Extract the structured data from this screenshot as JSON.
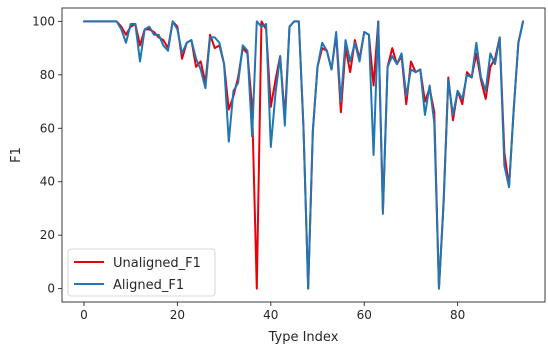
{
  "chart_data": {
    "type": "line",
    "xlabel": "Type Index",
    "ylabel": "F1",
    "xlim": [
      -4.7,
      98.7
    ],
    "ylim": [
      -5,
      105
    ],
    "xticks": [
      0,
      20,
      40,
      60,
      80
    ],
    "yticks": [
      0,
      20,
      40,
      60,
      80,
      100
    ],
    "legend_position": "lower-left",
    "series": [
      {
        "name": "Unaligned_F1",
        "color": "#e8000b",
        "values": [
          100,
          100,
          100,
          100,
          100,
          100,
          100,
          100,
          98,
          95,
          98,
          99,
          91,
          97,
          97,
          96,
          94,
          93,
          90,
          100,
          98,
          86,
          92,
          93,
          83,
          85,
          77,
          95,
          90,
          91,
          84,
          67,
          72,
          79,
          90,
          88,
          68,
          0,
          100,
          97,
          68,
          78,
          87,
          64,
          98,
          100,
          100,
          60,
          0,
          59,
          83,
          90,
          89,
          82,
          95,
          66,
          90,
          81,
          93,
          86,
          96,
          95,
          76,
          100,
          29,
          83,
          90,
          84,
          87,
          69,
          85,
          81,
          82,
          70,
          75,
          66,
          0,
          33,
          79,
          63,
          74,
          69,
          81,
          79,
          88,
          78,
          71,
          83,
          86,
          94,
          51,
          38,
          67,
          92,
          100
        ]
      },
      {
        "name": "Aligned_F1",
        "color": "#1f77b4",
        "values": [
          100,
          100,
          100,
          100,
          100,
          100,
          100,
          100,
          97,
          92,
          99,
          99,
          85,
          97,
          98,
          95,
          95,
          91,
          89,
          100,
          97,
          88,
          92,
          93,
          86,
          82,
          75,
          94,
          94,
          92,
          84,
          55,
          74,
          77,
          91,
          89,
          57,
          100,
          98,
          99,
          53,
          73,
          87,
          61,
          98,
          100,
          100,
          60,
          0,
          59,
          83,
          92,
          89,
          82,
          96,
          70,
          93,
          85,
          92,
          85,
          96,
          95,
          50,
          100,
          28,
          83,
          87,
          84,
          88,
          72,
          82,
          81,
          82,
          65,
          76,
          62,
          0,
          32,
          78,
          65,
          74,
          71,
          80,
          79,
          92,
          79,
          74,
          88,
          84,
          94,
          46,
          38,
          67,
          92,
          100
        ]
      }
    ]
  }
}
